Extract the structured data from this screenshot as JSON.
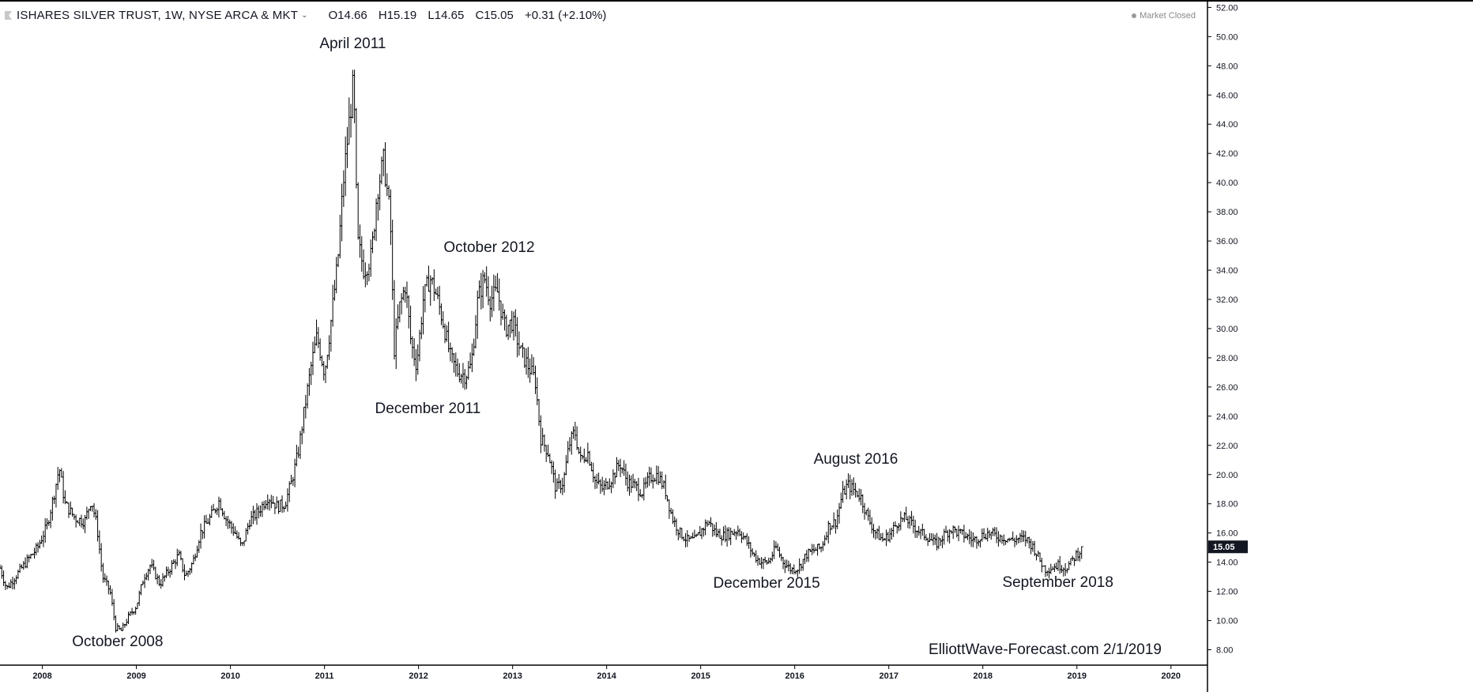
{
  "header": {
    "symbol_title": "ISHARES SILVER TRUST, 1W, NYSE ARCA & MKT",
    "open": "O14.66",
    "high": "H15.19",
    "low": "L14.65",
    "close": "C15.05",
    "change": "+0.31 (+2.10%)",
    "market_status": "Market Closed"
  },
  "watermark": "ElliottWave-Forecast.com 2/1/2019",
  "colors": {
    "bars": "#000000",
    "price_badge": "#131722",
    "axis_text": "#131722",
    "frame": "#000000"
  },
  "chart_data": {
    "type": "ohlc",
    "interval": "1W",
    "x_axis": {
      "unit": "year",
      "range": [
        2007.55,
        2020.38
      ],
      "tick_labels": [
        "2008",
        "2009",
        "2010",
        "2011",
        "2012",
        "2013",
        "2014",
        "2015",
        "2016",
        "2017",
        "2018",
        "2019",
        "2020"
      ]
    },
    "y_axis": {
      "position": "right",
      "range": [
        7,
        52.4
      ],
      "tick_labels": [
        "8.00",
        "10.00",
        "12.00",
        "14.00",
        "16.00",
        "18.00",
        "20.00",
        "22.00",
        "24.00",
        "26.00",
        "28.00",
        "30.00",
        "32.00",
        "34.00",
        "36.00",
        "38.00",
        "40.00",
        "42.00",
        "44.00",
        "46.00",
        "48.00",
        "50.00",
        "52.00"
      ]
    },
    "last_price": "15.05",
    "grid": false,
    "price_path": [
      [
        2007.55,
        13.6
      ],
      [
        2007.62,
        12.2
      ],
      [
        2007.7,
        12.9
      ],
      [
        2007.85,
        14.2
      ],
      [
        2007.95,
        15.0
      ],
      [
        2008.05,
        16.5
      ],
      [
        2008.12,
        18.5
      ],
      [
        2008.18,
        20.5
      ],
      [
        2008.24,
        18.0
      ],
      [
        2008.35,
        17.0
      ],
      [
        2008.45,
        16.8
      ],
      [
        2008.52,
        18.3
      ],
      [
        2008.58,
        16.5
      ],
      [
        2008.64,
        13.0
      ],
      [
        2008.72,
        12.0
      ],
      [
        2008.78,
        9.5
      ],
      [
        2008.84,
        9.3
      ],
      [
        2008.92,
        10.3
      ],
      [
        2009.0,
        11.0
      ],
      [
        2009.08,
        13.0
      ],
      [
        2009.15,
        13.8
      ],
      [
        2009.25,
        12.5
      ],
      [
        2009.35,
        13.5
      ],
      [
        2009.45,
        14.5
      ],
      [
        2009.52,
        13.0
      ],
      [
        2009.6,
        14.0
      ],
      [
        2009.68,
        16.0
      ],
      [
        2009.78,
        17.0
      ],
      [
        2009.88,
        18.2
      ],
      [
        2009.95,
        17.0
      ],
      [
        2010.05,
        16.0
      ],
      [
        2010.12,
        15.0
      ],
      [
        2010.2,
        16.8
      ],
      [
        2010.3,
        17.5
      ],
      [
        2010.4,
        18.5
      ],
      [
        2010.5,
        17.8
      ],
      [
        2010.58,
        18.0
      ],
      [
        2010.65,
        19.5
      ],
      [
        2010.72,
        21.5
      ],
      [
        2010.8,
        25.0
      ],
      [
        2010.86,
        27.5
      ],
      [
        2010.92,
        29.5
      ],
      [
        2011.0,
        27.0
      ],
      [
        2011.06,
        30.0
      ],
      [
        2011.14,
        34.5
      ],
      [
        2011.2,
        40.0
      ],
      [
        2011.26,
        44.0
      ],
      [
        2011.31,
        47.0
      ],
      [
        2011.35,
        36.0
      ],
      [
        2011.42,
        34.0
      ],
      [
        2011.5,
        35.0
      ],
      [
        2011.56,
        39.5
      ],
      [
        2011.63,
        41.5
      ],
      [
        2011.7,
        37.5
      ],
      [
        2011.74,
        28.5
      ],
      [
        2011.8,
        31.5
      ],
      [
        2011.86,
        33.0
      ],
      [
        2011.92,
        29.0
      ],
      [
        2011.98,
        27.5
      ],
      [
        2012.05,
        32.0
      ],
      [
        2012.12,
        33.5
      ],
      [
        2012.18,
        32.5
      ],
      [
        2012.26,
        30.5
      ],
      [
        2012.34,
        28.0
      ],
      [
        2012.42,
        27.0
      ],
      [
        2012.5,
        26.8
      ],
      [
        2012.56,
        27.5
      ],
      [
        2012.63,
        32.0
      ],
      [
        2012.7,
        33.5
      ],
      [
        2012.76,
        32.0
      ],
      [
        2012.84,
        32.5
      ],
      [
        2012.92,
        30.0
      ],
      [
        2013.0,
        30.5
      ],
      [
        2013.08,
        28.5
      ],
      [
        2013.16,
        27.5
      ],
      [
        2013.24,
        26.5
      ],
      [
        2013.3,
        22.5
      ],
      [
        2013.38,
        21.5
      ],
      [
        2013.46,
        19.0
      ],
      [
        2013.54,
        19.5
      ],
      [
        2013.6,
        22.0
      ],
      [
        2013.66,
        23.0
      ],
      [
        2013.72,
        21.0
      ],
      [
        2013.8,
        21.5
      ],
      [
        2013.88,
        19.5
      ],
      [
        2013.96,
        19.0
      ],
      [
        2014.06,
        19.8
      ],
      [
        2014.14,
        20.8
      ],
      [
        2014.22,
        19.5
      ],
      [
        2014.3,
        19.2
      ],
      [
        2014.38,
        18.8
      ],
      [
        2014.46,
        19.8
      ],
      [
        2014.54,
        20.0
      ],
      [
        2014.62,
        19.0
      ],
      [
        2014.7,
        17.0
      ],
      [
        2014.78,
        16.0
      ],
      [
        2014.86,
        15.5
      ],
      [
        2014.94,
        15.5
      ],
      [
        2015.02,
        16.3
      ],
      [
        2015.08,
        16.8
      ],
      [
        2015.16,
        16.0
      ],
      [
        2015.24,
        15.8
      ],
      [
        2015.32,
        16.0
      ],
      [
        2015.4,
        16.2
      ],
      [
        2015.48,
        15.5
      ],
      [
        2015.56,
        14.5
      ],
      [
        2015.64,
        14.0
      ],
      [
        2015.72,
        14.0
      ],
      [
        2015.8,
        15.0
      ],
      [
        2015.88,
        14.0
      ],
      [
        2015.96,
        13.5
      ],
      [
        2016.04,
        13.6
      ],
      [
        2016.12,
        14.5
      ],
      [
        2016.2,
        14.8
      ],
      [
        2016.28,
        15.0
      ],
      [
        2016.36,
        16.5
      ],
      [
        2016.44,
        16.8
      ],
      [
        2016.5,
        18.5
      ],
      [
        2016.56,
        19.3
      ],
      [
        2016.62,
        19.0
      ],
      [
        2016.7,
        18.5
      ],
      [
        2016.78,
        17.0
      ],
      [
        2016.86,
        16.0
      ],
      [
        2016.94,
        15.5
      ],
      [
        2017.02,
        16.0
      ],
      [
        2017.1,
        16.8
      ],
      [
        2017.18,
        17.0
      ],
      [
        2017.26,
        16.5
      ],
      [
        2017.34,
        16.0
      ],
      [
        2017.42,
        15.7
      ],
      [
        2017.5,
        15.2
      ],
      [
        2017.58,
        15.8
      ],
      [
        2017.66,
        16.3
      ],
      [
        2017.74,
        16.0
      ],
      [
        2017.82,
        15.8
      ],
      [
        2017.9,
        15.5
      ],
      [
        2017.98,
        15.8
      ],
      [
        2018.06,
        16.0
      ],
      [
        2018.14,
        15.8
      ],
      [
        2018.22,
        15.7
      ],
      [
        2018.3,
        15.5
      ],
      [
        2018.38,
        15.6
      ],
      [
        2018.46,
        15.6
      ],
      [
        2018.54,
        15.0
      ],
      [
        2018.6,
        14.2
      ],
      [
        2018.66,
        13.5
      ],
      [
        2018.72,
        13.6
      ],
      [
        2018.8,
        13.8
      ],
      [
        2018.88,
        13.6
      ],
      [
        2018.94,
        14.0
      ],
      [
        2019.0,
        14.6
      ],
      [
        2019.06,
        14.9
      ]
    ],
    "annotations": [
      {
        "text": "October 2008",
        "x": 2008.8,
        "y": 8.5
      },
      {
        "text": "April 2011",
        "x": 2011.3,
        "y": 49.5
      },
      {
        "text": "December 2011",
        "x": 2012.1,
        "y": 24.5
      },
      {
        "text": "October 2012",
        "x": 2012.75,
        "y": 35.5
      },
      {
        "text": "August 2016",
        "x": 2016.65,
        "y": 21.0
      },
      {
        "text": "December  2015",
        "x": 2015.7,
        "y": 12.5
      },
      {
        "text": "September 2018",
        "x": 2018.8,
        "y": 12.6
      }
    ]
  }
}
